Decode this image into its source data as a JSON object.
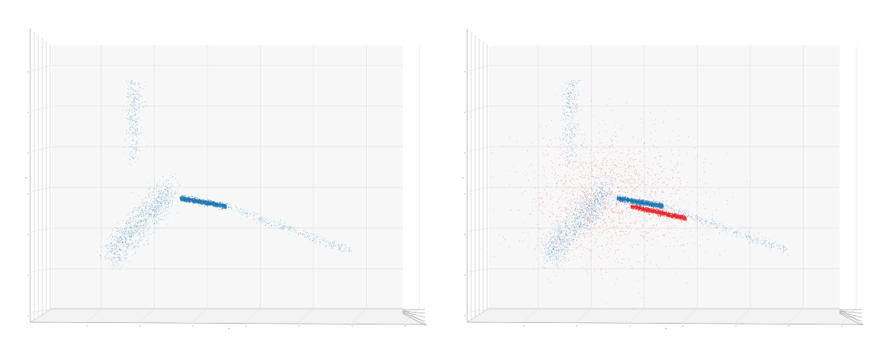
{
  "colors": {
    "background": "#ffffff",
    "pane": "#f7f7f7",
    "grid": "#d4d4d4",
    "axis": "#9a9a9a",
    "series_blue": "#1f77b4",
    "series_red": "#e8262a"
  },
  "chart_data": [
    {
      "type": "scatter",
      "projection": "3d",
      "title": "",
      "xlabel": "",
      "ylabel": "",
      "zlabel": "",
      "grid": true,
      "legend": "none",
      "series": [
        {
          "color": "#1f77b4",
          "clusters": [
            {
              "role": "dense-ridge",
              "x": [
                0.5,
                1.5
              ],
              "z": [
                0.2,
                0.4
              ],
              "density": "very-high"
            },
            {
              "role": "ridge-tail",
              "x": [
                1.5,
                4.2
              ],
              "z": [
                -0.9,
                0.2
              ],
              "density": "low"
            },
            {
              "role": "lower-left-mass",
              "x": [
                -1.0,
                0.3
              ],
              "z": [
                -1.0,
                0.6
              ],
              "density": "high"
            },
            {
              "role": "upper-plume",
              "x": [
                -0.7,
                -0.3
              ],
              "z": [
                1.2,
                3.3
              ],
              "density": "low"
            }
          ]
        }
      ]
    },
    {
      "type": "scatter",
      "projection": "3d",
      "title": "",
      "xlabel": "",
      "ylabel": "",
      "zlabel": "",
      "grid": true,
      "legend": "none",
      "series": [
        {
          "color": "#e8262a",
          "clusters": [
            {
              "role": "dense-ridge",
              "x": [
                0.8,
                2.0
              ],
              "z": [
                -0.1,
                0.2
              ],
              "density": "very-high"
            },
            {
              "role": "diffuse-cloud",
              "x": [
                -1.5,
                2.2
              ],
              "z": [
                -1.2,
                2.0
              ],
              "density": "medium"
            }
          ]
        },
        {
          "color": "#1f77b4",
          "clusters": [
            {
              "role": "dense-ridge",
              "x": [
                0.5,
                1.5
              ],
              "z": [
                0.2,
                0.4
              ],
              "density": "very-high"
            },
            {
              "role": "ridge-tail",
              "x": [
                1.5,
                4.2
              ],
              "z": [
                -0.9,
                0.2
              ],
              "density": "low"
            },
            {
              "role": "lower-left-mass",
              "x": [
                -1.0,
                0.3
              ],
              "z": [
                -1.0,
                0.6
              ],
              "density": "high"
            },
            {
              "role": "upper-plume",
              "x": [
                -0.7,
                -0.3
              ],
              "z": [
                1.2,
                3.3
              ],
              "density": "low"
            }
          ]
        }
      ]
    }
  ]
}
